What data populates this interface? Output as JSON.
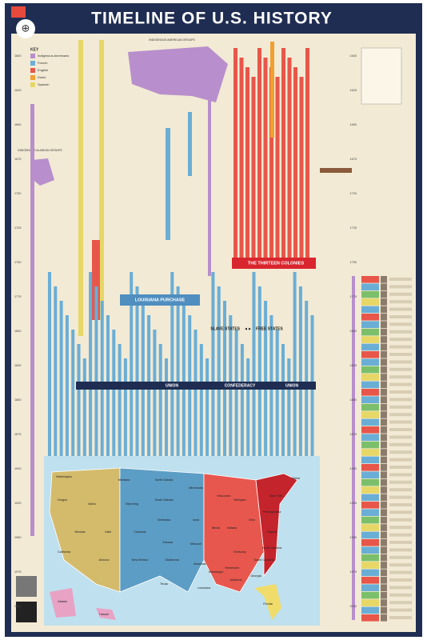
{
  "header": {
    "title": "TIMELINE OF U.S. HISTORY"
  },
  "key": {
    "title": "KEY",
    "items": [
      "Indigenous Americans",
      "French",
      "English",
      "Dutch",
      "Spanish"
    ]
  },
  "labels": {
    "indigenous_american": "INDIGENOUS AMERICAN GROUPS",
    "indigenous_alaskan": "INDIGENOUS ALASKAN GROUPS",
    "colonies": "THE THIRTEEN COLONIES",
    "louisiana": "LOUISIANA PURCHASE",
    "slave": "SLAVE STATES",
    "free": "FREE STATES",
    "union1": "UNION",
    "confederacy": "CONFEDERACY",
    "union2": "UNION"
  },
  "years": [
    "1600",
    "1625",
    "1650",
    "1675",
    "1700",
    "1725",
    "1750",
    "1775",
    "1800",
    "1825",
    "1850",
    "1875",
    "1900",
    "1925",
    "1950",
    "1975",
    "2000"
  ],
  "map": {
    "states": [
      "Washington",
      "Oregon",
      "Idaho",
      "Montana",
      "North Dakota",
      "South Dakota",
      "Wyoming",
      "Nevada",
      "Utah",
      "Colorado",
      "California",
      "Arizona",
      "New Mexico",
      "Nebraska",
      "Kansas",
      "Oklahoma",
      "Texas",
      "Minnesota",
      "Iowa",
      "Missouri",
      "Arkansas",
      "Louisiana",
      "Wisconsin",
      "Illinois",
      "Michigan",
      "Indiana",
      "Ohio",
      "Kentucky",
      "Tennessee",
      "Mississippi",
      "Alabama",
      "Georgia",
      "Florida",
      "South Carolina",
      "North Carolina",
      "Virginia",
      "Pennsylvania",
      "New York",
      "Maine",
      "Alaska",
      "Hawaii"
    ]
  }
}
